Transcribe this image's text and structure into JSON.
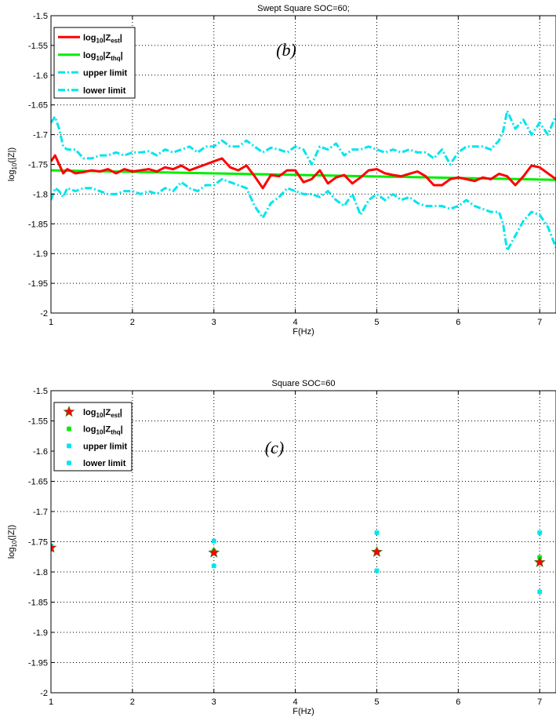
{
  "colors": {
    "estimated": "#ff0000",
    "theoretical": "#00ee00",
    "limits": "#00e5ee",
    "grid": "#000000",
    "axes": "#000000"
  },
  "chart_data": [
    {
      "type": "line",
      "title": "Swept Square SOC=60;",
      "panel_label": "(b)",
      "xlabel": "F(Hz)",
      "ylabel": "log10(|Z|)",
      "xlim": [
        1,
        7.2
      ],
      "ylim": [
        -2,
        -1.5
      ],
      "xticks": [
        1,
        2,
        3,
        4,
        5,
        6,
        7
      ],
      "yticks": [
        -1.5,
        -1.55,
        -1.6,
        -1.65,
        -1.7,
        -1.75,
        -1.8,
        -1.85,
        -1.9,
        -1.95,
        -2
      ],
      "xtick_labels": [
        "1",
        "2",
        "3",
        "4",
        "5",
        "6",
        "7"
      ],
      "ytick_labels": [
        "-1.5",
        "-1.55",
        "-1.6",
        "-1.65",
        "-1.7",
        "-1.75",
        "-1.8",
        "-1.85",
        "-1.9",
        "-1.95",
        "-2"
      ],
      "grid": true,
      "legend_position": "top-left",
      "legend": [
        {
          "base": "log",
          "sub": "10",
          "mid": "|Z",
          "sub2": "est",
          "end": "|",
          "style": "solid-red"
        },
        {
          "base": "log",
          "sub": "10",
          "mid": "|Z",
          "sub2": "thq",
          "end": "|",
          "style": "solid-green"
        },
        {
          "text": "upper limit",
          "style": "dashdot-cyan"
        },
        {
          "text": "lower limit",
          "style": "dashdot-cyan"
        }
      ],
      "series": [
        {
          "x": [
            1.0,
            1.05,
            1.1,
            1.15,
            1.2,
            1.3,
            1.4,
            1.5,
            1.6,
            1.7,
            1.8,
            1.9,
            2.0,
            2.1,
            2.2,
            2.3,
            2.4,
            2.5,
            2.6,
            2.7,
            2.8,
            2.9,
            3.0,
            3.1,
            3.2,
            3.3,
            3.4,
            3.5,
            3.6,
            3.7,
            3.8,
            3.9,
            4.0,
            4.1,
            4.2,
            4.3,
            4.4,
            4.5,
            4.6,
            4.7,
            4.8,
            4.9,
            5.0,
            5.1,
            5.2,
            5.3,
            5.4,
            5.5,
            5.6,
            5.7,
            5.8,
            5.9,
            6.0,
            6.1,
            6.2,
            6.3,
            6.4,
            6.5,
            6.6,
            6.7,
            6.8,
            6.9,
            7.0,
            7.1,
            7.2
          ],
          "values": [
            -1.745,
            -1.735,
            -1.75,
            -1.765,
            -1.758,
            -1.765,
            -1.763,
            -1.76,
            -1.762,
            -1.758,
            -1.765,
            -1.758,
            -1.762,
            -1.76,
            -1.758,
            -1.762,
            -1.755,
            -1.758,
            -1.752,
            -1.76,
            -1.755,
            -1.75,
            -1.745,
            -1.74,
            -1.755,
            -1.76,
            -1.752,
            -1.77,
            -1.79,
            -1.768,
            -1.77,
            -1.76,
            -1.76,
            -1.78,
            -1.775,
            -1.76,
            -1.782,
            -1.772,
            -1.768,
            -1.782,
            -1.772,
            -1.76,
            -1.758,
            -1.765,
            -1.768,
            -1.77,
            -1.766,
            -1.762,
            -1.77,
            -1.785,
            -1.785,
            -1.775,
            -1.772,
            -1.775,
            -1.778,
            -1.772,
            -1.775,
            -1.766,
            -1.77,
            -1.785,
            -1.77,
            -1.752,
            -1.755,
            -1.765,
            -1.775
          ]
        },
        {
          "x": [
            1.0,
            7.2
          ],
          "values": [
            -1.76,
            -1.776
          ]
        },
        {
          "x": [
            1.0,
            1.05,
            1.1,
            1.15,
            1.2,
            1.3,
            1.4,
            1.5,
            1.6,
            1.7,
            1.8,
            1.9,
            2.0,
            2.1,
            2.2,
            2.3,
            2.4,
            2.5,
            2.6,
            2.7,
            2.8,
            2.9,
            3.0,
            3.1,
            3.2,
            3.3,
            3.4,
            3.5,
            3.6,
            3.7,
            3.8,
            3.9,
            4.0,
            4.1,
            4.2,
            4.3,
            4.4,
            4.5,
            4.6,
            4.7,
            4.8,
            4.9,
            5.0,
            5.1,
            5.2,
            5.3,
            5.4,
            5.5,
            5.6,
            5.7,
            5.8,
            5.9,
            6.0,
            6.1,
            6.2,
            6.3,
            6.4,
            6.5,
            6.55,
            6.6,
            6.7,
            6.8,
            6.9,
            7.0,
            7.1,
            7.2
          ],
          "values": [
            -1.68,
            -1.67,
            -1.69,
            -1.72,
            -1.725,
            -1.725,
            -1.74,
            -1.74,
            -1.735,
            -1.735,
            -1.73,
            -1.735,
            -1.73,
            -1.73,
            -1.728,
            -1.735,
            -1.725,
            -1.73,
            -1.725,
            -1.72,
            -1.73,
            -1.72,
            -1.72,
            -1.71,
            -1.72,
            -1.72,
            -1.71,
            -1.72,
            -1.73,
            -1.722,
            -1.725,
            -1.73,
            -1.72,
            -1.725,
            -1.75,
            -1.72,
            -1.725,
            -1.715,
            -1.735,
            -1.725,
            -1.725,
            -1.72,
            -1.725,
            -1.73,
            -1.725,
            -1.73,
            -1.725,
            -1.73,
            -1.73,
            -1.74,
            -1.725,
            -1.75,
            -1.73,
            -1.72,
            -1.72,
            -1.72,
            -1.725,
            -1.71,
            -1.695,
            -1.66,
            -1.69,
            -1.675,
            -1.7,
            -1.68,
            -1.7,
            -1.668
          ]
        },
        {
          "x": [
            1.0,
            1.05,
            1.1,
            1.15,
            1.2,
            1.3,
            1.4,
            1.5,
            1.6,
            1.7,
            1.8,
            1.9,
            2.0,
            2.1,
            2.2,
            2.3,
            2.4,
            2.5,
            2.6,
            2.7,
            2.8,
            2.9,
            3.0,
            3.1,
            3.2,
            3.3,
            3.4,
            3.5,
            3.6,
            3.7,
            3.8,
            3.9,
            4.0,
            4.1,
            4.2,
            4.3,
            4.4,
            4.5,
            4.6,
            4.7,
            4.8,
            4.9,
            5.0,
            5.1,
            5.2,
            5.3,
            5.4,
            5.5,
            5.6,
            5.7,
            5.8,
            5.9,
            6.0,
            6.1,
            6.2,
            6.3,
            6.4,
            6.5,
            6.55,
            6.6,
            6.7,
            6.8,
            6.9,
            7.0,
            7.1,
            7.2
          ],
          "values": [
            -1.81,
            -1.79,
            -1.795,
            -1.805,
            -1.79,
            -1.795,
            -1.79,
            -1.79,
            -1.795,
            -1.8,
            -1.8,
            -1.795,
            -1.795,
            -1.8,
            -1.795,
            -1.8,
            -1.79,
            -1.795,
            -1.78,
            -1.79,
            -1.795,
            -1.785,
            -1.785,
            -1.775,
            -1.78,
            -1.785,
            -1.79,
            -1.82,
            -1.84,
            -1.815,
            -1.805,
            -1.79,
            -1.795,
            -1.8,
            -1.8,
            -1.805,
            -1.795,
            -1.81,
            -1.82,
            -1.8,
            -1.835,
            -1.81,
            -1.8,
            -1.81,
            -1.8,
            -1.81,
            -1.805,
            -1.815,
            -1.82,
            -1.82,
            -1.82,
            -1.825,
            -1.82,
            -1.81,
            -1.82,
            -1.825,
            -1.83,
            -1.83,
            -1.85,
            -1.895,
            -1.87,
            -1.845,
            -1.83,
            -1.835,
            -1.855,
            -1.89
          ]
        }
      ]
    },
    {
      "type": "scatter",
      "title": "Square SOC=60",
      "panel_label": "(c)",
      "xlabel": "F(Hz)",
      "ylabel": "log10(|Z|)",
      "xlim": [
        1,
        7.2
      ],
      "ylim": [
        -2,
        -1.5
      ],
      "xticks": [
        1,
        2,
        3,
        4,
        5,
        6,
        7
      ],
      "yticks": [
        -1.5,
        -1.55,
        -1.6,
        -1.65,
        -1.7,
        -1.75,
        -1.8,
        -1.85,
        -1.9,
        -1.95,
        -2
      ],
      "xtick_labels": [
        "1",
        "2",
        "3",
        "4",
        "5",
        "6",
        "7"
      ],
      "ytick_labels": [
        "-1.5",
        "-1.55",
        "-1.6",
        "-1.65",
        "-1.7",
        "-1.75",
        "-1.8",
        "-1.85",
        "-1.9",
        "-1.95",
        "-2"
      ],
      "grid": true,
      "legend_position": "top-left",
      "legend": [
        {
          "base": "log",
          "sub": "10",
          "mid": "|Z",
          "sub2": "est",
          "end": "|",
          "style": "star-red"
        },
        {
          "base": "log",
          "sub": "10",
          "mid": "|Z",
          "sub2": "thq",
          "end": "|",
          "style": "x-green"
        },
        {
          "text": "upper limit",
          "style": "x-cyan"
        },
        {
          "text": "lower limit",
          "style": "x-cyan"
        }
      ],
      "series": [
        {
          "x": [
            1,
            3,
            5,
            7
          ],
          "values": [
            -1.76,
            -1.768,
            -1.767,
            -1.784
          ]
        },
        {
          "x": [
            1,
            3,
            5,
            7
          ],
          "values": [
            -1.761,
            -1.765,
            -1.766,
            -1.776
          ]
        },
        {
          "x": [
            1,
            3,
            5,
            7
          ],
          "values": [
            -1.757,
            -1.749,
            -1.735,
            -1.735
          ]
        },
        {
          "x": [
            1,
            3,
            5,
            7
          ],
          "values": [
            -1.763,
            -1.79,
            -1.798,
            -1.833
          ]
        }
      ]
    }
  ]
}
